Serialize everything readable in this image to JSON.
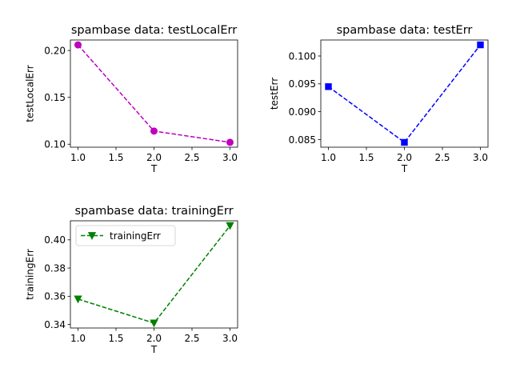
{
  "chart_data": [
    {
      "type": "line",
      "title": "spambase data: testLocalErr",
      "xlabel": "T",
      "ylabel": "testLocalErr",
      "x": [
        1.0,
        2.0,
        3.0
      ],
      "series": [
        {
          "values": [
            0.206,
            0.114,
            0.102
          ],
          "color": "#bf00bf",
          "marker": "circle",
          "linestyle": "dashed"
        }
      ],
      "xlim": [
        0.9,
        3.1
      ],
      "ylim": [
        0.0968,
        0.2112
      ],
      "xticks": [
        1.0,
        1.5,
        2.0,
        2.5,
        3.0
      ],
      "xtick_labels": [
        "1.0",
        "1.5",
        "2.0",
        "2.5",
        "3.0"
      ],
      "yticks": [
        0.1,
        0.15,
        0.2
      ],
      "ytick_labels": [
        "0.10",
        "0.15",
        "0.20"
      ],
      "legend": null,
      "grid": false
    },
    {
      "type": "line",
      "title": "spambase data: testErr",
      "xlabel": "T",
      "ylabel": "testErr",
      "x": [
        1.0,
        2.0,
        3.0
      ],
      "series": [
        {
          "values": [
            0.0945,
            0.0845,
            0.102
          ],
          "color": "#0000ff",
          "marker": "square",
          "linestyle": "dashed"
        }
      ],
      "xlim": [
        0.9,
        3.1
      ],
      "ylim": [
        0.08363,
        0.10287
      ],
      "xticks": [
        1.0,
        1.5,
        2.0,
        2.5,
        3.0
      ],
      "xtick_labels": [
        "1.0",
        "1.5",
        "2.0",
        "2.5",
        "3.0"
      ],
      "yticks": [
        0.085,
        0.09,
        0.095,
        0.1
      ],
      "ytick_labels": [
        "0.085",
        "0.090",
        "0.095",
        "0.100"
      ],
      "legend": null,
      "grid": false
    },
    {
      "type": "line",
      "title": "spambase data: trainingErr",
      "xlabel": "T",
      "ylabel": "trainingErr",
      "x": [
        1.0,
        2.0,
        3.0
      ],
      "series": [
        {
          "name": "trainingErr",
          "values": [
            0.358,
            0.341,
            0.41
          ],
          "color": "#008000",
          "marker": "triangle-down",
          "linestyle": "dashed"
        }
      ],
      "xlim": [
        0.9,
        3.1
      ],
      "ylim": [
        0.3375,
        0.4135
      ],
      "xticks": [
        1.0,
        1.5,
        2.0,
        2.5,
        3.0
      ],
      "xtick_labels": [
        "1.0",
        "1.5",
        "2.0",
        "2.5",
        "3.0"
      ],
      "yticks": [
        0.34,
        0.36,
        0.38,
        0.4
      ],
      "ytick_labels": [
        "0.34",
        "0.36",
        "0.38",
        "0.40"
      ],
      "legend": "upper-left",
      "grid": false
    }
  ]
}
